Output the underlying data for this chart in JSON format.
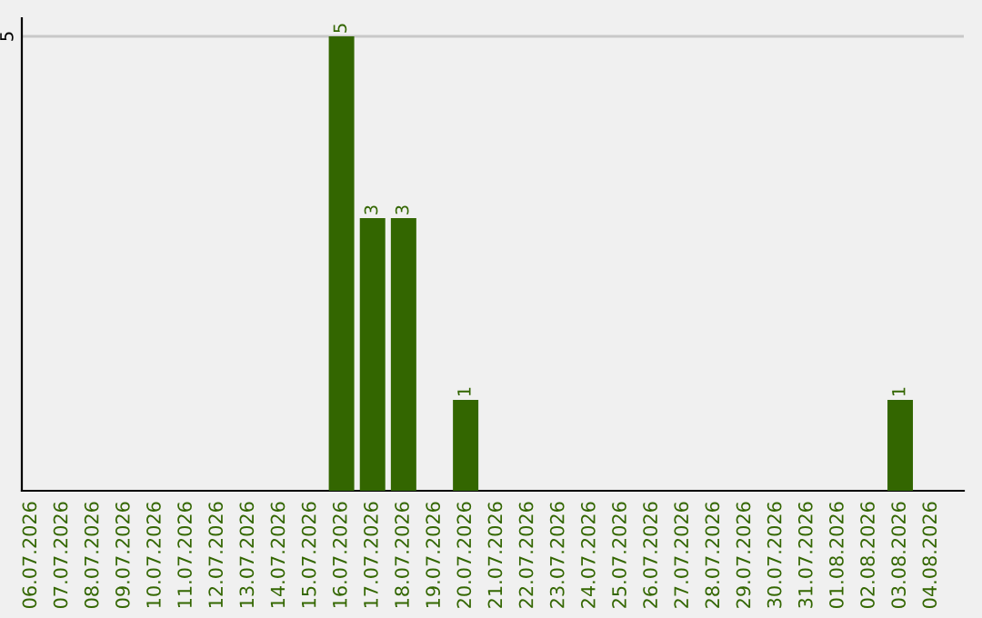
{
  "chart_data": {
    "type": "bar",
    "categories": [
      "06.07.2026",
      "07.07.2026",
      "08.07.2026",
      "09.07.2026",
      "10.07.2026",
      "11.07.2026",
      "12.07.2026",
      "13.07.2026",
      "14.07.2026",
      "15.07.2026",
      "16.07.2026",
      "17.07.2026",
      "18.07.2026",
      "19.07.2026",
      "20.07.2026",
      "21.07.2026",
      "22.07.2026",
      "23.07.2026",
      "24.07.2026",
      "25.07.2026",
      "26.07.2026",
      "27.07.2026",
      "28.07.2026",
      "29.07.2026",
      "30.07.2026",
      "31.07.2026",
      "01.08.2026",
      "02.08.2026",
      "03.08.2026",
      "04.08.2026"
    ],
    "values": [
      0,
      0,
      0,
      0,
      0,
      0,
      0,
      0,
      0,
      0,
      5,
      3,
      3,
      0,
      1,
      0,
      0,
      0,
      0,
      0,
      0,
      0,
      0,
      0,
      0,
      0,
      0,
      0,
      1,
      0
    ],
    "value_labels": [
      null,
      null,
      null,
      null,
      null,
      null,
      null,
      null,
      null,
      null,
      "5",
      "3",
      "3",
      null,
      "1",
      null,
      null,
      null,
      null,
      null,
      null,
      null,
      null,
      null,
      null,
      null,
      null,
      null,
      "1",
      null
    ],
    "color": "#336600",
    "ylim": [
      0,
      5.2
    ],
    "yticks": [
      5
    ],
    "grid": "y"
  }
}
